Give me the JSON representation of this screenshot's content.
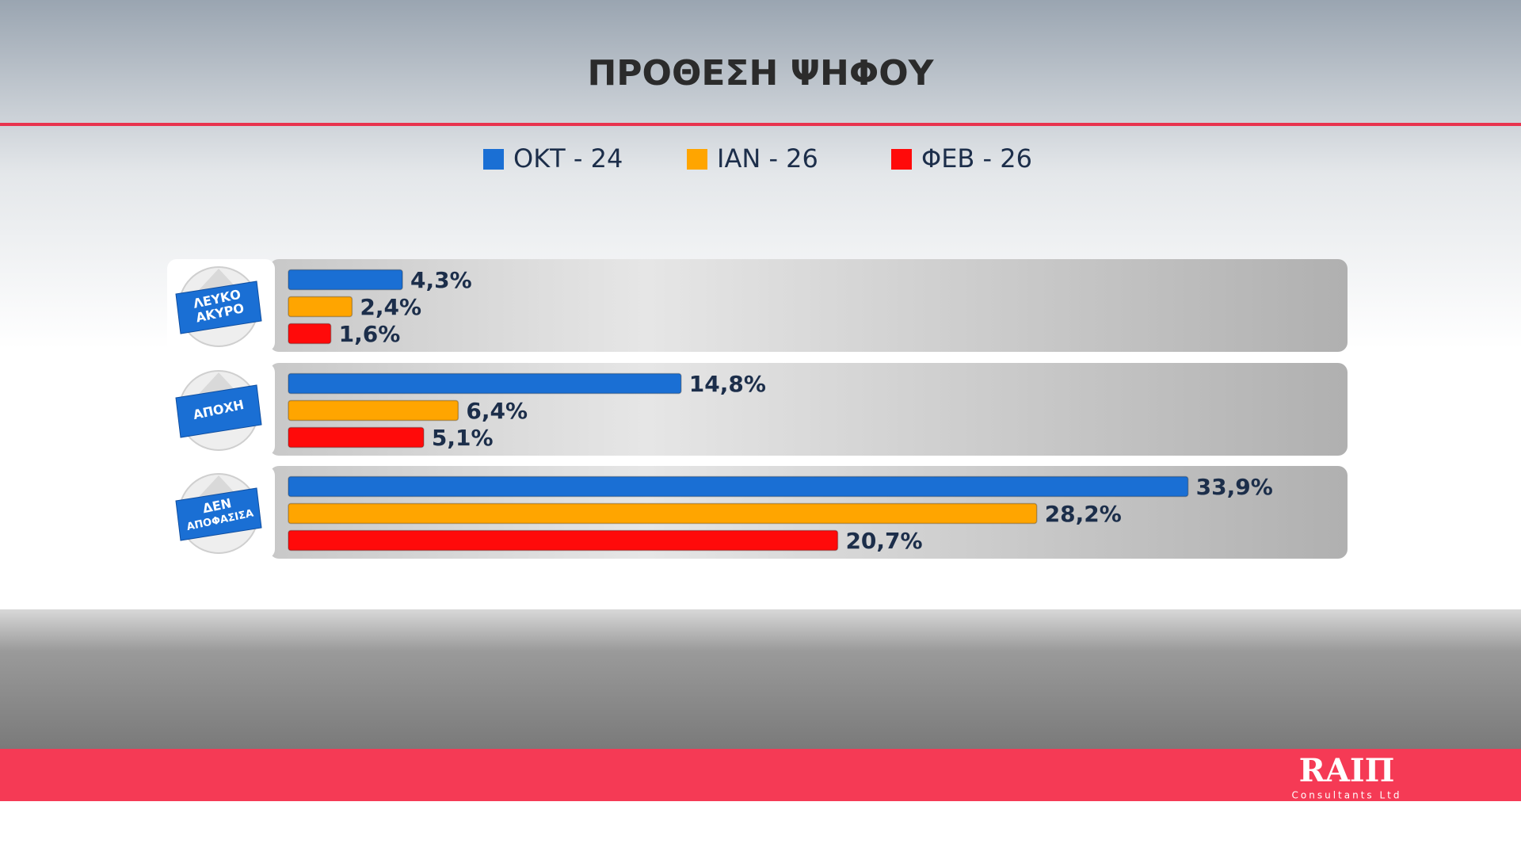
{
  "chart_data": {
    "type": "hbar",
    "title": "ΠΡΟΘΕΣΗ ΨΗΦΟΥ",
    "categories": [
      [
        "ΛΕΥΚΟ",
        "ΑΚΥΡΟ"
      ],
      [
        "ΑΠΟΧΗ"
      ],
      [
        "ΔΕΝ",
        "ΑΠΟΦΑΣΙΣΑ"
      ]
    ],
    "series": [
      {
        "name": "ΟΚΤ - 24",
        "color": "#1a6fd4",
        "values": [
          4.3,
          14.8,
          33.9
        ],
        "value_labels": [
          "4,3%",
          "14,8%",
          "33,9%"
        ]
      },
      {
        "name": "ΙΑΝ - 26",
        "color": "#ffa500",
        "values": [
          2.4,
          6.4,
          28.2
        ],
        "value_labels": [
          "2,4%",
          "6,4%",
          "28,2%"
        ]
      },
      {
        "name": "ΦΕΒ - 26",
        "color": "#ff0a0a",
        "values": [
          1.6,
          5.1,
          20.7
        ],
        "value_labels": [
          "1,6%",
          "5,1%",
          "20,7%"
        ]
      }
    ],
    "xlim": [
      0,
      40
    ],
    "logo_text": "RAIΠ",
    "logo_subtext": "Consultants Ltd"
  }
}
